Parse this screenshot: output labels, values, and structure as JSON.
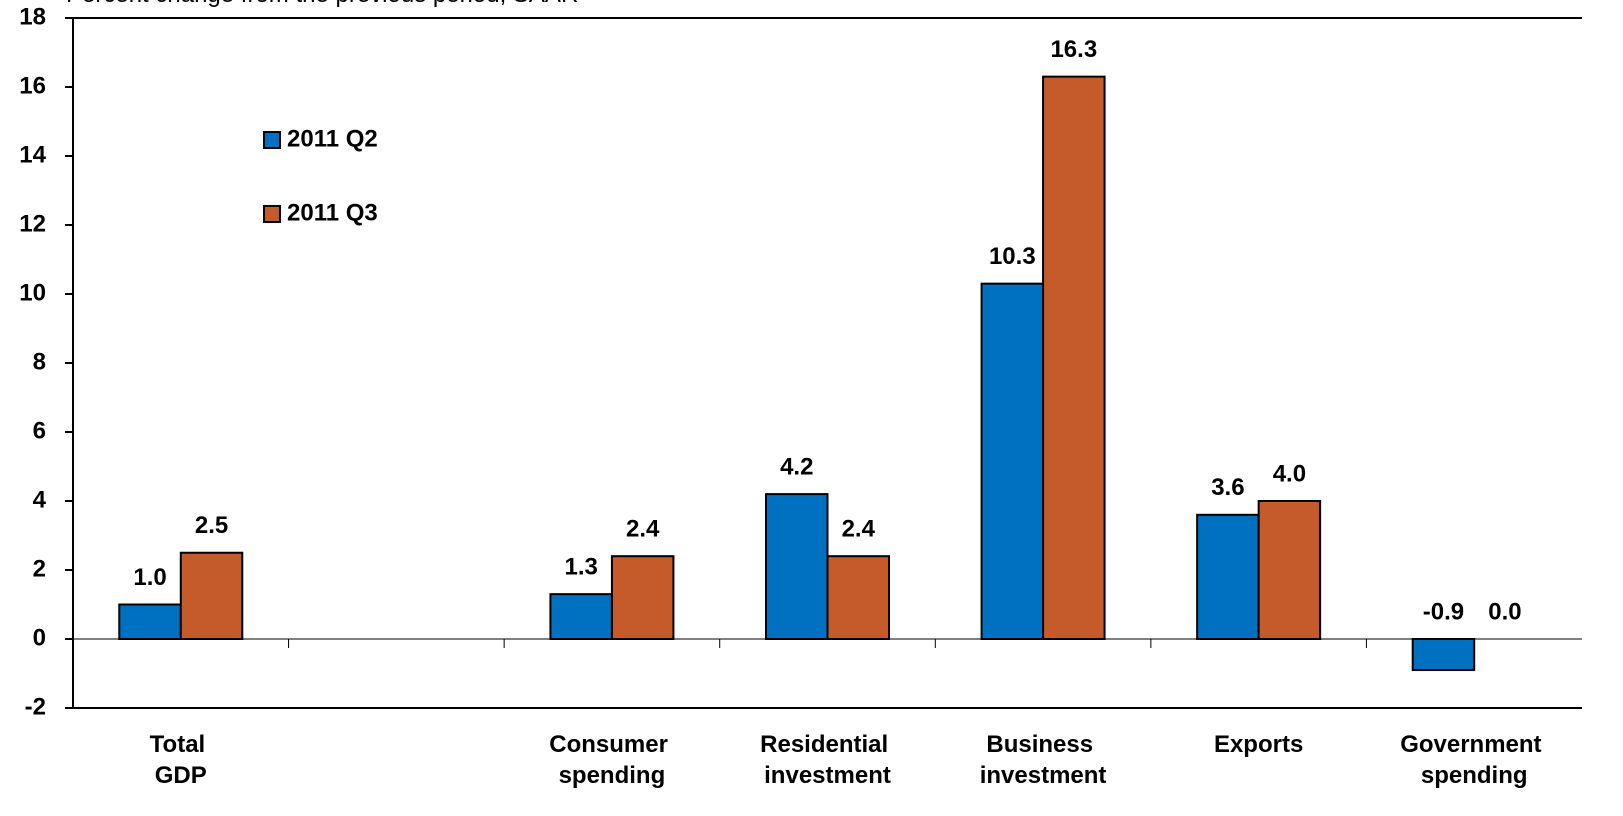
{
  "chart_data": {
    "type": "bar",
    "subtitle": "Percent change from the previous period, SAAR",
    "categories": [
      "Total GDP",
      null,
      "Consumer spending",
      "Residential investment",
      "Business investment",
      "Exports",
      "Government spending"
    ],
    "series": [
      {
        "name": "2011 Q2",
        "color": "#0070c0",
        "values": [
          1.0,
          null,
          1.3,
          4.2,
          10.3,
          3.6,
          -0.9
        ],
        "value_labels": [
          "1.0",
          null,
          "1.3",
          "4.2",
          "10.3",
          "3.6",
          "-0.9"
        ]
      },
      {
        "name": "2011 Q3",
        "color": "#c55a2a",
        "values": [
          2.5,
          null,
          2.4,
          2.4,
          16.3,
          4.0,
          0.0
        ],
        "value_labels": [
          "2.5",
          null,
          "2.4",
          "2.4",
          "16.3",
          "4.0",
          "0.0"
        ]
      }
    ],
    "ylim": [
      -2,
      18
    ],
    "yticks": [
      -2,
      0,
      2,
      4,
      6,
      8,
      10,
      12,
      14,
      16,
      18
    ],
    "grid": false
  }
}
